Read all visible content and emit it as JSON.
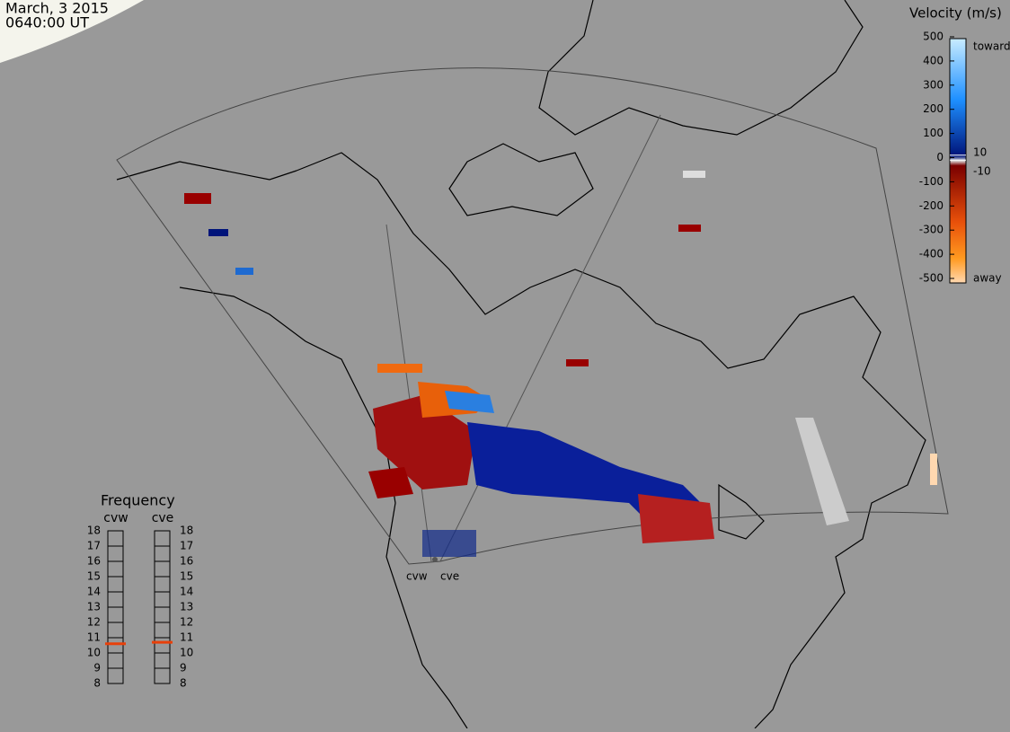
{
  "header": {
    "date": "March, 3 2015",
    "time": "0640:00 UT"
  },
  "velocity_scale": {
    "title": "Velocity (m/s)",
    "ylim": [
      -500,
      500
    ],
    "ticks": [
      500,
      400,
      300,
      200,
      100,
      0,
      -100,
      -200,
      -300,
      -400,
      -500
    ],
    "inner_ticks": [
      10,
      -10
    ],
    "toward": "toward",
    "away": "away"
  },
  "frequency": {
    "title": "Frequency",
    "ylim": [
      8,
      18
    ],
    "ticks": [
      18,
      17,
      16,
      15,
      14,
      13,
      12,
      11,
      10,
      9,
      8
    ],
    "radars": [
      {
        "name": "cvw",
        "value": 10.6
      },
      {
        "name": "cve",
        "value": 10.7
      }
    ]
  },
  "radar_labels": [
    "cvw",
    "cve"
  ]
}
